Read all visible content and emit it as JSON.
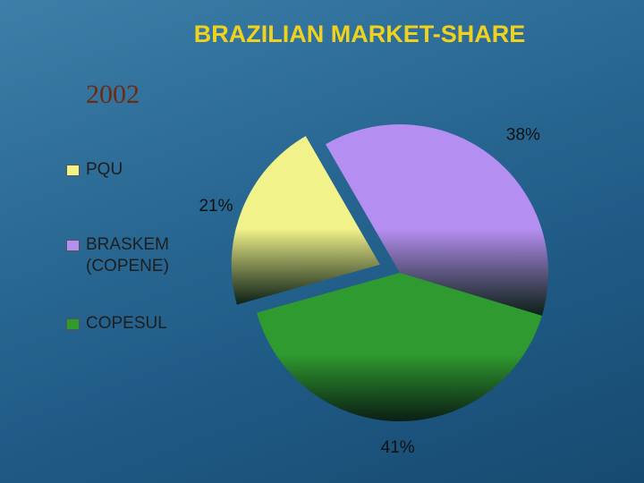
{
  "chart_data": {
    "type": "pie",
    "title": "BRAZILIAN MARKET-SHARE",
    "subtitle": "2002",
    "categories": [
      "PQU",
      "BRASKEM (COPENE)",
      "COPESUL"
    ],
    "values": [
      21,
      38,
      41
    ],
    "value_labels": [
      "21%",
      "38%",
      "41%"
    ],
    "colors": [
      "#f2f28a",
      "#b48ef0",
      "#2f9a2f"
    ],
    "legend": "left"
  }
}
